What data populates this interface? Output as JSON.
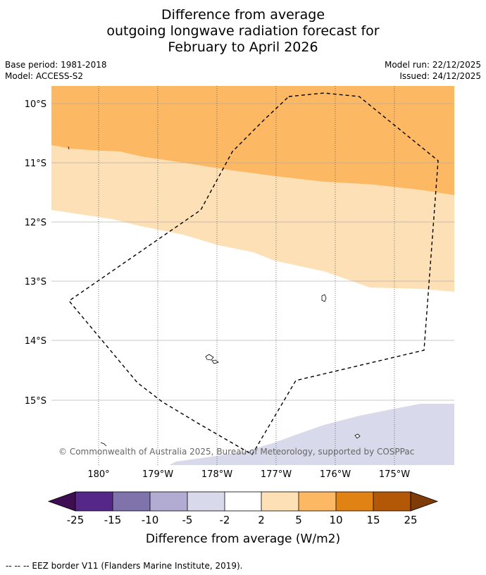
{
  "title": {
    "line1": "Difference from average",
    "line2": "outgoing longwave radiation forecast for",
    "line3": "February to April 2026"
  },
  "meta": {
    "base_period": "Base period: 1981-2018",
    "model": "Model: ACCESS-S2",
    "model_run": "Model run: 22/12/2025",
    "issued": "Issued: 24/12/2025"
  },
  "map": {
    "lat_labels": [
      "10°S",
      "11°S",
      "12°S",
      "13°S",
      "14°S",
      "15°S"
    ],
    "lon_labels": [
      "180°",
      "179°W",
      "178°W",
      "177°W",
      "176°W",
      "175°W"
    ],
    "copyright": "© Commonwealth of Australia 2025, Bureau of Meteorology, supported by COSPPac",
    "fill_colors": {
      "band_5_to_10": "#fdb863",
      "band_2_to_5": "#fee0b6",
      "band_neg5_to_neg2": "#d8daeb"
    }
  },
  "colorbar": {
    "tick_labels": [
      "-25",
      "-15",
      "-10",
      "-5",
      "-2",
      "2",
      "5",
      "10",
      "15",
      "25"
    ],
    "label": "Difference from average (W/m2)",
    "colors": [
      "#3f0d52",
      "#542788",
      "#8073ac",
      "#b2abd2",
      "#d8daeb",
      "#ffffff",
      "#fee0b6",
      "#fdb863",
      "#e08214",
      "#b35806",
      "#7f3b08"
    ]
  },
  "footnote": "--  --  -- EEZ border V11 (Flanders Marine Institute, 2019)."
}
